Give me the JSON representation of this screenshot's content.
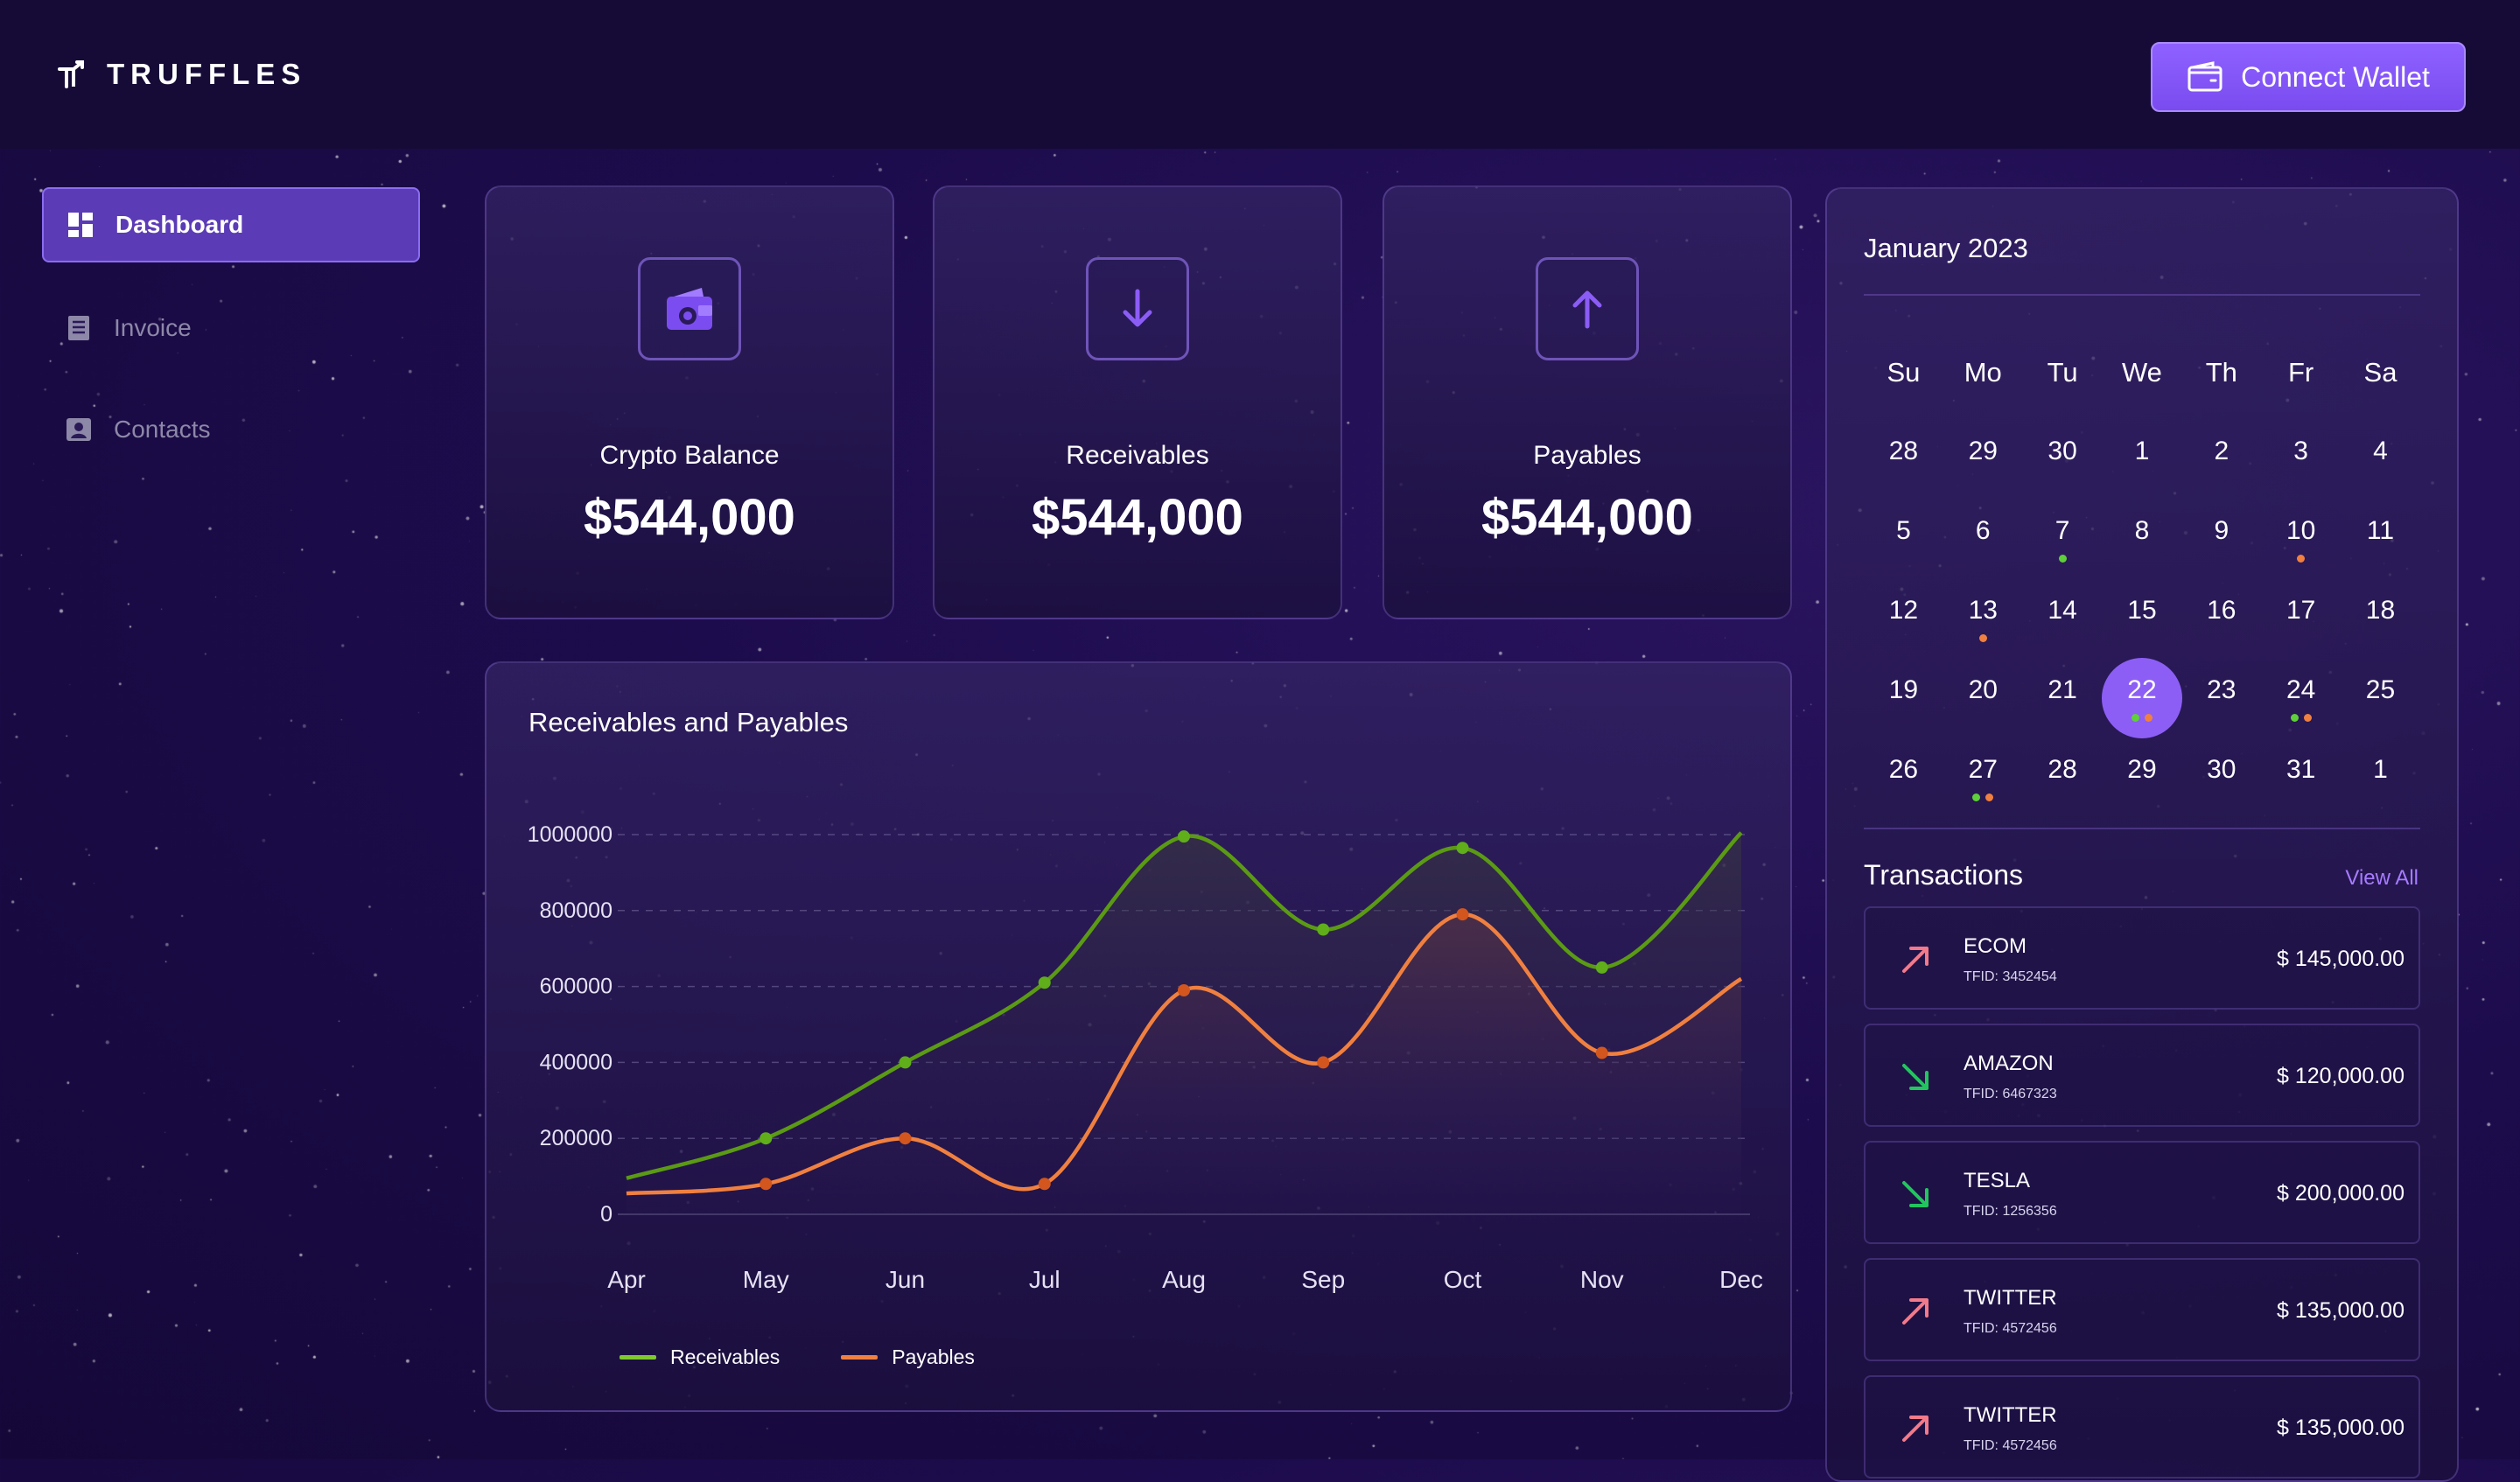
{
  "app": {
    "name": "TRUFFLES"
  },
  "header": {
    "connect_label": "Connect Wallet"
  },
  "sidebar": {
    "items": [
      {
        "label": "Dashboard",
        "icon": "dashboard-icon",
        "active": true
      },
      {
        "label": "Invoice",
        "icon": "invoice-icon",
        "active": false
      },
      {
        "label": "Contacts",
        "icon": "contacts-icon",
        "active": false
      }
    ]
  },
  "stats": [
    {
      "label": "Crypto Balance",
      "value": "$544,000",
      "icon": "wallet-icon"
    },
    {
      "label": "Receivables",
      "value": "$544,000",
      "icon": "arrow-down-icon"
    },
    {
      "label": "Payables",
      "value": "$544,000",
      "icon": "arrow-up-icon"
    }
  ],
  "chart": {
    "title": "Receivables and Payables"
  },
  "chart_data": {
    "type": "area",
    "categories": [
      "Apr",
      "May",
      "Jun",
      "Jul",
      "Aug",
      "Sep",
      "Oct",
      "Nov",
      "Dec"
    ],
    "series": [
      {
        "name": "Receivables",
        "color": "#5b9a14",
        "values": [
          95000,
          200000,
          400000,
          610000,
          995000,
          750000,
          965000,
          650000,
          1005000
        ]
      },
      {
        "name": "Payables",
        "color": "#f08040",
        "values": [
          55000,
          80000,
          200000,
          80000,
          590000,
          400000,
          790000,
          425000,
          620000
        ]
      }
    ],
    "yticks": [
      "1000000",
      "800000",
      "600000",
      "400000",
      "200000",
      "0"
    ],
    "ylim": [
      0,
      1000000
    ],
    "grid": true,
    "legend": "bottom-left"
  },
  "calendar": {
    "title": "January 2023",
    "weekdays": [
      "Su",
      "Mo",
      "Tu",
      "We",
      "Th",
      "Fr",
      "Sa"
    ],
    "weeks": [
      [
        {
          "d": "28"
        },
        {
          "d": "29"
        },
        {
          "d": "30"
        },
        {
          "d": "1"
        },
        {
          "d": "2"
        },
        {
          "d": "3"
        },
        {
          "d": "4"
        }
      ],
      [
        {
          "d": "5"
        },
        {
          "d": "6"
        },
        {
          "d": "7",
          "dots": [
            "#5fcf3a"
          ]
        },
        {
          "d": "8"
        },
        {
          "d": "9"
        },
        {
          "d": "10",
          "dots": [
            "#f08040"
          ]
        },
        {
          "d": "11"
        }
      ],
      [
        {
          "d": "12"
        },
        {
          "d": "13",
          "dots": [
            "#f08040"
          ]
        },
        {
          "d": "14"
        },
        {
          "d": "15"
        },
        {
          "d": "16"
        },
        {
          "d": "17"
        },
        {
          "d": "18"
        }
      ],
      [
        {
          "d": "19"
        },
        {
          "d": "20"
        },
        {
          "d": "21"
        },
        {
          "d": "22",
          "selected": true,
          "dots": [
            "#5fcf3a",
            "#f08040"
          ]
        },
        {
          "d": "23"
        },
        {
          "d": "24",
          "dots": [
            "#5fcf3a",
            "#f08040"
          ]
        },
        {
          "d": "25"
        }
      ],
      [
        {
          "d": "26"
        },
        {
          "d": "27",
          "dots": [
            "#5fcf3a",
            "#f08040"
          ]
        },
        {
          "d": "28"
        },
        {
          "d": "29"
        },
        {
          "d": "30"
        },
        {
          "d": "31"
        },
        {
          "d": "1"
        }
      ]
    ]
  },
  "transactions": {
    "title": "Transactions",
    "view_all": "View All",
    "items": [
      {
        "name": "ECOM",
        "id": "TFID: 3452454",
        "amount": "$ 145,000.00",
        "direction": "up",
        "color": "#f27a8a"
      },
      {
        "name": "AMAZON",
        "id": "TFID: 6467323",
        "amount": "$ 120,000.00",
        "direction": "down",
        "color": "#22c55e"
      },
      {
        "name": "TESLA",
        "id": "TFID: 1256356",
        "amount": "$ 200,000.00",
        "direction": "down",
        "color": "#22c55e"
      },
      {
        "name": "TWITTER",
        "id": "TFID: 4572456",
        "amount": "$ 135,000.00",
        "direction": "up",
        "color": "#f27a8a"
      },
      {
        "name": "TWITTER",
        "id": "TFID: 4572456",
        "amount": "$ 135,000.00",
        "direction": "up",
        "color": "#f27a8a"
      }
    ]
  }
}
